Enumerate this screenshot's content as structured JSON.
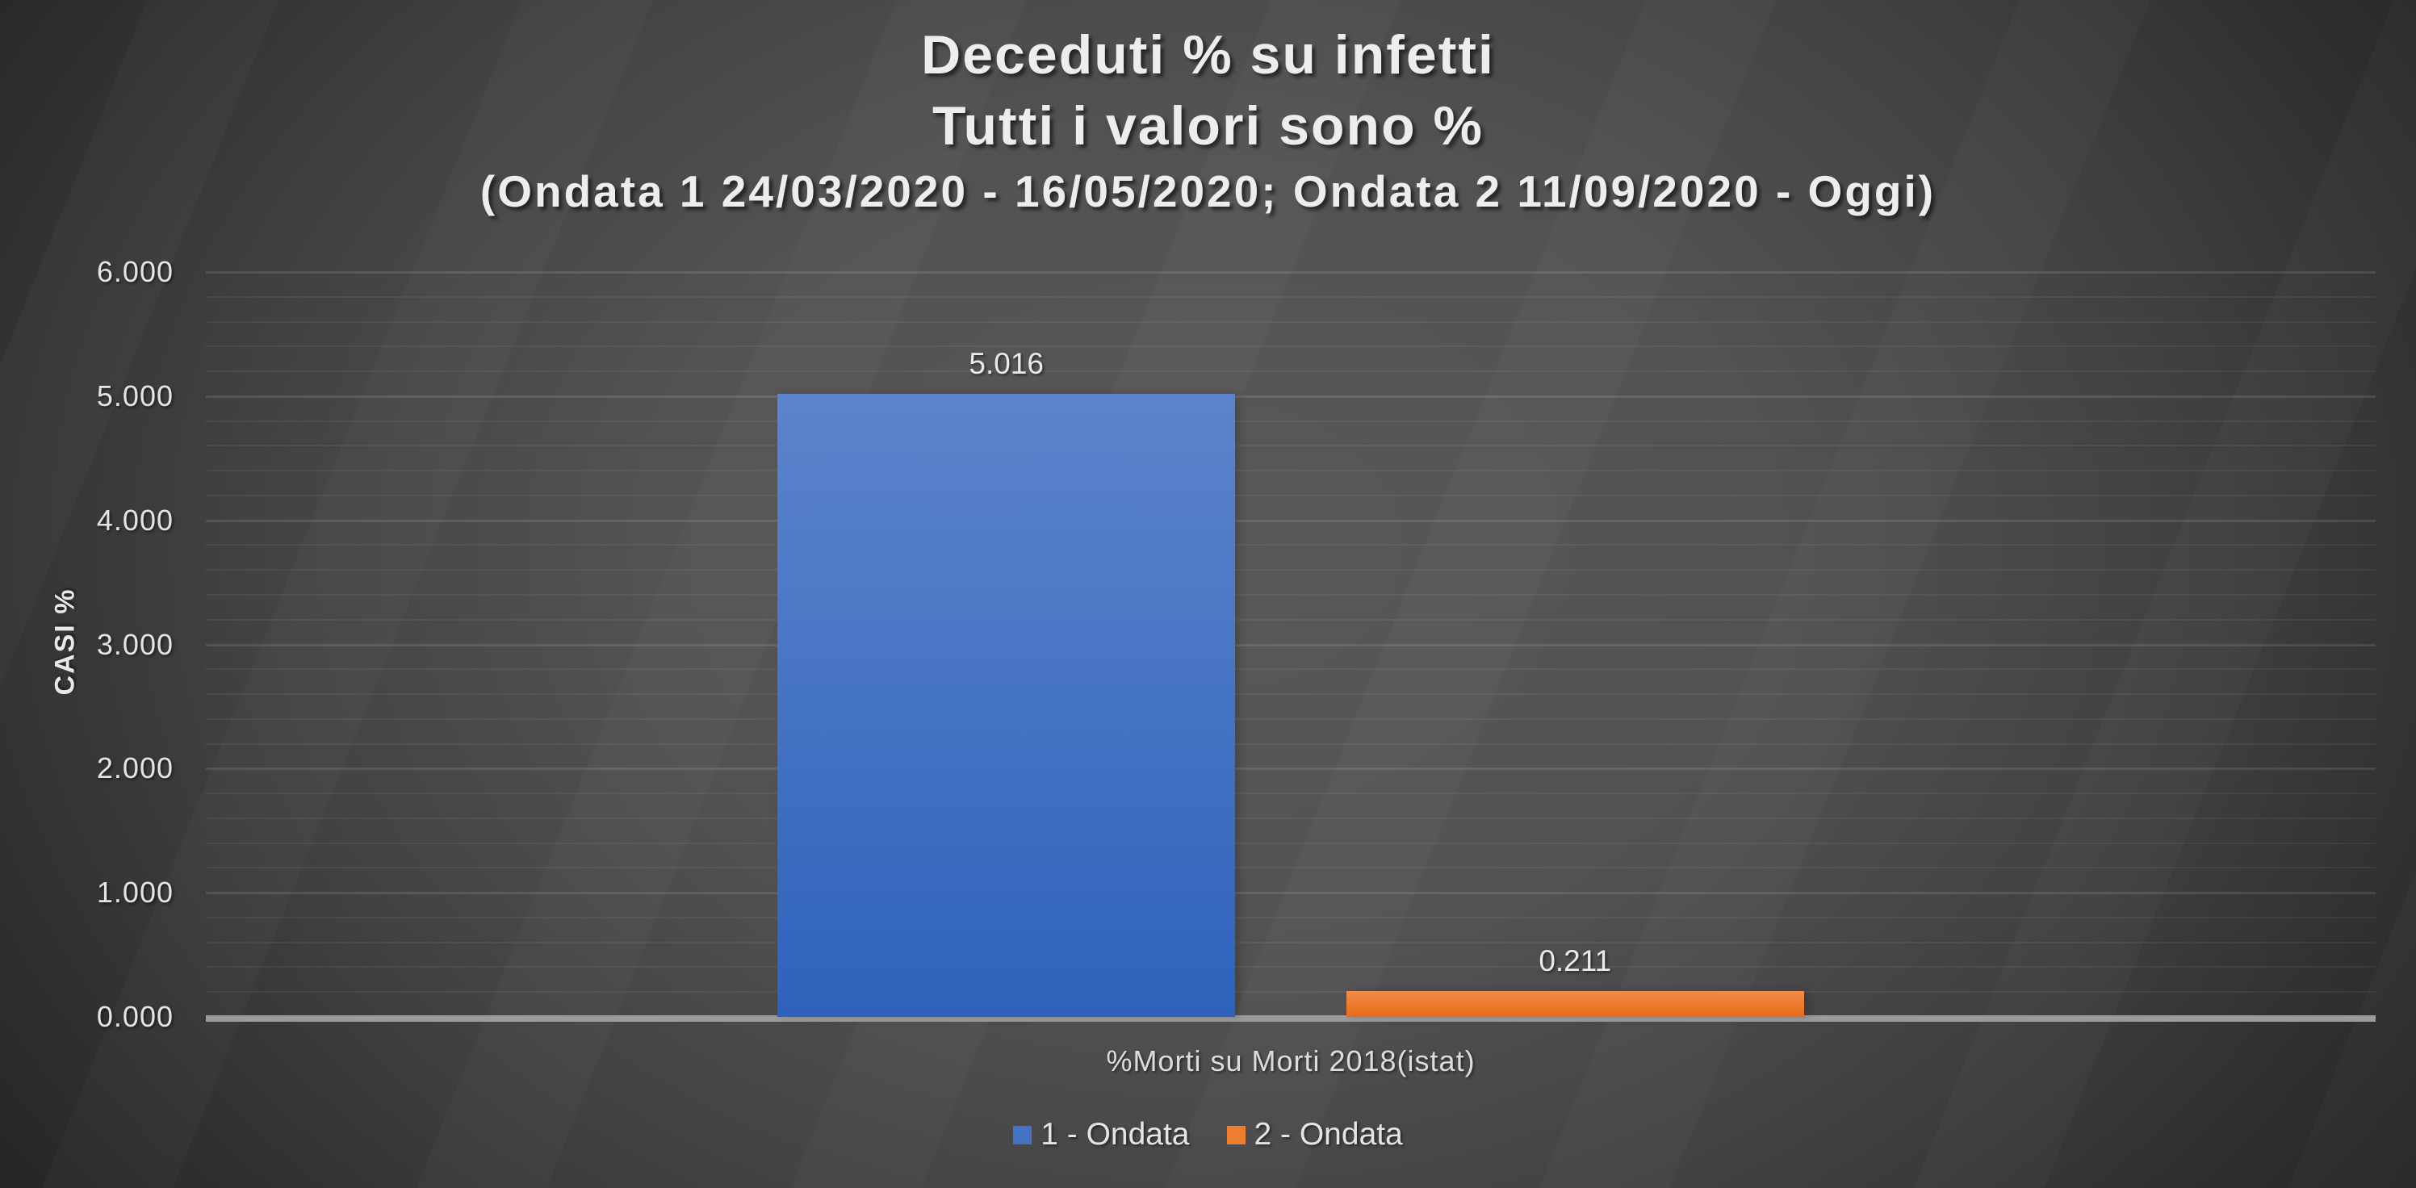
{
  "title": {
    "line1": "Deceduti % su infetti",
    "line2": "Tutti i valori sono %",
    "line3": "(Ondata 1 24/03/2020 - 16/05/2020; Ondata 2 11/09/2020 - Oggi)"
  },
  "chart_data": {
    "type": "bar",
    "categories": [
      "%Morti su Morti 2018(istat)"
    ],
    "series": [
      {
        "name": "1 - Ondata",
        "values": [
          5.016
        ],
        "data_label": "5.016",
        "color_top": "#5c84cc",
        "color_bottom": "#2e62bb",
        "legend_color": "#4472c4"
      },
      {
        "name": "2 - Ondata",
        "values": [
          0.211
        ],
        "data_label": "0.211",
        "color_top": "#f28c49",
        "color_bottom": "#e86c18",
        "legend_color": "#ed7d31"
      }
    ],
    "xlabel": "%Morti su Morti 2018(istat)",
    "ylabel": "CASI %",
    "ylim": [
      0,
      6
    ],
    "y_major_unit": 1.0,
    "y_minor_unit": 0.2,
    "y_tick_labels": [
      "0.000",
      "1.000",
      "2.000",
      "3.000",
      "4.000",
      "5.000",
      "6.000"
    ],
    "grid": "horizontal major+minor",
    "legend_position": "bottom"
  },
  "colors": {
    "background_center": "#59595b",
    "background_edge": "#242426",
    "axis_line": "#9b9b9d",
    "gridline_major": "rgba(255,255,255,0.11)",
    "gridline_minor": "rgba(255,255,255,0.055)",
    "text": "#e9e9e9"
  }
}
